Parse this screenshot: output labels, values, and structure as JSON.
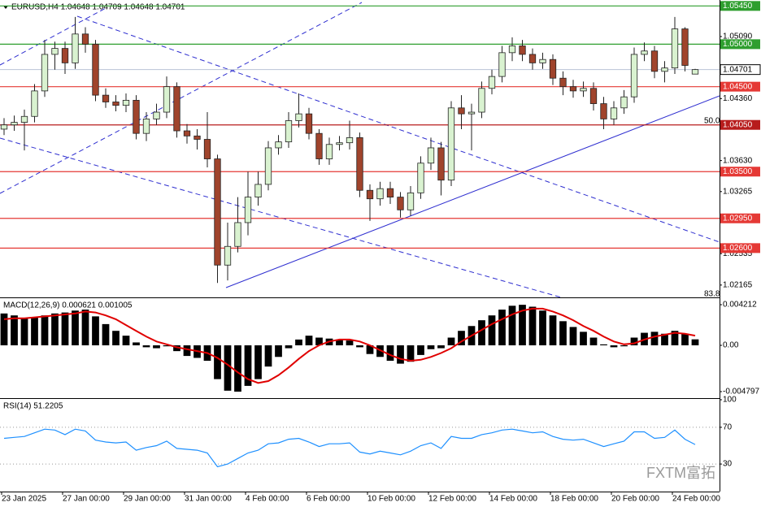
{
  "watermark": "FXTM富拓",
  "chart_data": [
    {
      "type": "candlestick",
      "title": "EURUSD,H4  1.04648 1.04709 1.04648 1.04701",
      "categories": [
        "23 Jan 2025",
        null,
        null,
        null,
        null,
        null,
        "27 Jan 00:00",
        null,
        null,
        null,
        null,
        null,
        "29 Jan 00:00",
        null,
        null,
        null,
        null,
        null,
        "31 Jan 00:00",
        null,
        null,
        null,
        null,
        null,
        "4 Feb 00:00",
        null,
        null,
        null,
        null,
        null,
        "6 Feb 00:00",
        null,
        null,
        null,
        null,
        null,
        "10 Feb 00:00",
        null,
        null,
        null,
        null,
        null,
        "12 Feb 00:00",
        null,
        null,
        null,
        null,
        null,
        "14 Feb 00:00",
        null,
        null,
        null,
        null,
        null,
        "18 Feb 00:00",
        null,
        null,
        null,
        null,
        null,
        "20 Feb 00:00",
        null,
        null,
        null,
        null,
        null,
        "24 Feb 00:00",
        null,
        null
      ],
      "open": [
        1.04,
        1.0405,
        1.0408,
        1.0415,
        1.0445,
        1.0488,
        1.0495,
        1.0478,
        1.0512,
        1.05,
        1.044,
        1.0432,
        1.0428,
        1.0434,
        1.0395,
        1.0412,
        1.042,
        1.045,
        1.0398,
        1.0392,
        1.0388,
        1.0365,
        1.024,
        1.0262,
        1.029,
        1.032,
        1.0335,
        1.0378,
        1.0385,
        1.041,
        1.0418,
        1.0395,
        1.0365,
        1.0382,
        1.0384,
        1.039,
        1.0328,
        1.0318,
        1.033,
        1.032,
        1.0305,
        1.0325,
        1.036,
        1.0378,
        1.034,
        1.0425,
        1.0418,
        1.042,
        1.0448,
        1.0462,
        1.049,
        1.0498,
        1.0488,
        1.0478,
        1.0482,
        1.046,
        1.045,
        1.0445,
        1.0448,
        1.043,
        1.0412,
        1.0425,
        1.0438,
        1.0488,
        1.0492,
        1.0468,
        1.0472,
        1.0518,
        1.04648
      ],
      "high": [
        1.0413,
        1.0416,
        1.0423,
        1.0453,
        1.0505,
        1.0503,
        1.0503,
        1.0532,
        1.052,
        1.0505,
        1.0448,
        1.044,
        1.0442,
        1.044,
        1.042,
        1.043,
        1.0462,
        1.0455,
        1.0406,
        1.04,
        1.042,
        1.037,
        1.029,
        1.032,
        1.035,
        1.035,
        1.0386,
        1.0393,
        1.042,
        1.0442,
        1.0425,
        1.04,
        1.039,
        1.0392,
        1.041,
        1.0396,
        1.0335,
        1.0338,
        1.0338,
        1.0326,
        1.0333,
        1.0368,
        1.039,
        1.0385,
        1.0433,
        1.044,
        1.043,
        1.0456,
        1.047,
        1.0498,
        1.0508,
        1.0505,
        1.0495,
        1.049,
        1.0488,
        1.0468,
        1.0458,
        1.0456,
        1.0455,
        1.0438,
        1.0433,
        1.0446,
        1.0496,
        1.0502,
        1.0498,
        1.048,
        1.0532,
        1.052,
        1.04709
      ],
      "low": [
        1.0393,
        1.0398,
        1.0375,
        1.0408,
        1.0438,
        1.047,
        1.0465,
        1.0471,
        1.049,
        1.0433,
        1.0425,
        1.0421,
        1.042,
        1.0388,
        1.0386,
        1.0405,
        1.0413,
        1.039,
        1.0383,
        1.0376,
        1.0355,
        1.0219,
        1.0222,
        1.0255,
        1.0275,
        1.031,
        1.0328,
        1.037,
        1.0378,
        1.0402,
        1.0388,
        1.0358,
        1.0358,
        1.0375,
        1.0376,
        1.032,
        1.0292,
        1.031,
        1.0312,
        1.0296,
        1.0298,
        1.0318,
        1.0352,
        1.0322,
        1.0333,
        1.04,
        1.0375,
        1.0413,
        1.0441,
        1.0455,
        1.048,
        1.048,
        1.047,
        1.0471,
        1.0452,
        1.044,
        1.0437,
        1.0438,
        1.0422,
        1.04,
        1.0405,
        1.0418,
        1.0431,
        1.048,
        1.046,
        1.0455,
        1.0465,
        1.0468,
        1.04648
      ],
      "close": [
        1.0405,
        1.0408,
        1.0415,
        1.0445,
        1.0488,
        1.0495,
        1.0478,
        1.0512,
        1.05,
        1.044,
        1.0432,
        1.0428,
        1.0434,
        1.0395,
        1.0412,
        1.042,
        1.045,
        1.0398,
        1.0392,
        1.0388,
        1.0365,
        1.024,
        1.0262,
        1.029,
        1.032,
        1.0335,
        1.0378,
        1.0385,
        1.041,
        1.0418,
        1.0395,
        1.0365,
        1.0382,
        1.0384,
        1.039,
        1.0328,
        1.0318,
        1.033,
        1.032,
        1.0305,
        1.0325,
        1.036,
        1.0378,
        1.034,
        1.0425,
        1.0418,
        1.042,
        1.0448,
        1.0462,
        1.049,
        1.0498,
        1.0488,
        1.0478,
        1.0482,
        1.046,
        1.045,
        1.0445,
        1.0448,
        1.043,
        1.0412,
        1.0425,
        1.0438,
        1.0488,
        1.0492,
        1.0468,
        1.0472,
        1.0518,
        1.0475,
        1.04701
      ],
      "up_color": "#d9f2d0",
      "down_color": "#a0442c",
      "outline_color": "#222222",
      "ylim": [
        1.0202,
        1.0552
      ],
      "yticks": [
        {
          "value": 1.0509,
          "label": "1.05090"
        },
        {
          "value": 1.0436,
          "label": "1.04360"
        },
        {
          "value": 1.0363,
          "label": "1.03630"
        },
        1.03265,
        1.02535,
        1.02165
      ],
      "levels": [
        {
          "value": 1.0545,
          "label": "1.05450",
          "color": "#2e9e2e"
        },
        {
          "value": 1.05,
          "label": "1.05000",
          "color": "#2e9e2e"
        },
        {
          "value": 1.045,
          "label": "1.04500",
          "color": "#e53935"
        },
        {
          "value": 1.0405,
          "label": "1.04050",
          "color": "#b71c1c"
        },
        {
          "value": 1.035,
          "label": "1.03500",
          "color": "#e53935"
        },
        {
          "value": 1.0295,
          "label": "1.02950",
          "color": "#e53935"
        },
        {
          "value": 1.026,
          "label": "1.02600",
          "color": "#e53935"
        }
      ],
      "price": {
        "value": 1.04701,
        "label": "1.04701",
        "color": "#b9c3d6"
      },
      "fib_labels": [
        "50.0",
        "83.8"
      ]
    },
    {
      "type": "macd",
      "title": "MACD(12,26,9) 0.000621 0.001005",
      "histogram": {
        "color": "#000000",
        "values": [
          0.0033,
          0.0031,
          0.0028,
          0.0029,
          0.0031,
          0.0033,
          0.0034,
          0.0036,
          0.0037,
          0.003,
          0.0022,
          0.0015,
          0.001,
          0.0003,
          -0.0002,
          -0.0003,
          -0.0001,
          -0.0006,
          -0.0011,
          -0.0013,
          -0.0016,
          -0.0035,
          -0.0047,
          -0.0048,
          -0.0042,
          -0.0035,
          -0.0022,
          -0.0012,
          -0.0003,
          0.0006,
          0.001,
          0.0008,
          0.0007,
          0.0006,
          0.0005,
          -0.0002,
          -0.0009,
          -0.0012,
          -0.0016,
          -0.0019,
          -0.0017,
          -0.001,
          -0.0004,
          -0.0003,
          0.0008,
          0.0015,
          0.002,
          0.0026,
          0.0031,
          0.0037,
          0.0041,
          0.0042,
          0.004,
          0.0036,
          0.0031,
          0.0025,
          0.0019,
          0.0014,
          0.0008,
          0.0001,
          -0.0002,
          -0.0001,
          0.0008,
          0.0013,
          0.0014,
          0.0012,
          0.0015,
          0.0012,
          0.000621
        ]
      },
      "signal": {
        "color": "#e00000",
        "values": [
          0.0027,
          0.0028,
          0.0028,
          0.0029,
          0.003,
          0.0031,
          0.0032,
          0.0033,
          0.0035,
          0.0034,
          0.0031,
          0.0027,
          0.0021,
          0.0015,
          0.0009,
          0.0004,
          0.0001,
          -0.0002,
          -0.0004,
          -0.0006,
          -0.0008,
          -0.0013,
          -0.002,
          -0.0028,
          -0.0035,
          -0.0039,
          -0.0037,
          -0.0031,
          -0.0023,
          -0.0014,
          -0.0006,
          0,
          0.0004,
          0.0006,
          0.0006,
          0.0004,
          0,
          -0.0005,
          -0.001,
          -0.0014,
          -0.0016,
          -0.0015,
          -0.0012,
          -0.0008,
          -0.0003,
          0.0004,
          0.001,
          0.0016,
          0.0022,
          0.0027,
          0.0032,
          0.0036,
          0.0038,
          0.0038,
          0.0035,
          0.0031,
          0.0026,
          0.002,
          0.0015,
          0.0009,
          0.0004,
          0.0001,
          0.0002,
          0.0006,
          0.0009,
          0.0011,
          0.0013,
          0.0012,
          0.001005
        ]
      },
      "ylim": [
        -0.00547,
        0.0048
      ],
      "yticks": [
        0.004212,
        {
          "value": 0,
          "label": "0.00"
        },
        -0.004797
      ]
    },
    {
      "type": "line",
      "title": "RSI(14) 51.2205",
      "color": "#1e90ff",
      "values": [
        58,
        59,
        60,
        64,
        68,
        67,
        62,
        68,
        66,
        56,
        54,
        53,
        54,
        45,
        48,
        50,
        55,
        47,
        46,
        45,
        42,
        27,
        30,
        36,
        42,
        45,
        52,
        53,
        57,
        58,
        54,
        49,
        52,
        52,
        53,
        43,
        41,
        44,
        42,
        40,
        44,
        50,
        53,
        47,
        60,
        58,
        58,
        62,
        64,
        67,
        68,
        66,
        64,
        65,
        60,
        57,
        56,
        57,
        53,
        49,
        52,
        55,
        65,
        65,
        58,
        59,
        67,
        57,
        51.2205
      ],
      "ylim": [
        0,
        100
      ],
      "yticks": [
        100,
        70,
        30
      ]
    }
  ]
}
